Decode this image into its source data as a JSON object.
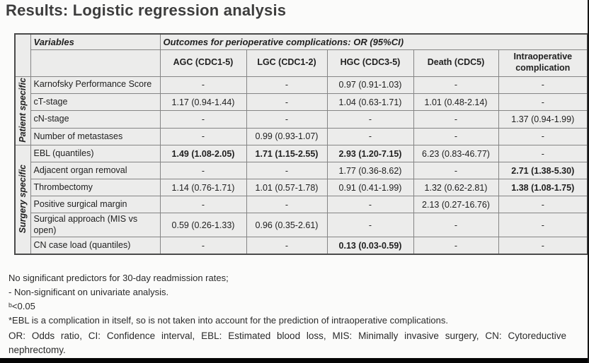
{
  "title": "Results: Logistic regression analysis",
  "table": {
    "variables_header": "Variables",
    "outcomes_header": "Outcomes for perioperative complications: OR (95%CI)",
    "columns": [
      "AGC (CDC1-5)",
      "LGC (CDC1-2)",
      "HGC (CDC3-5)",
      "Death (CDC5)",
      "Intraoperative complication"
    ],
    "groups": [
      {
        "label": "Patient specific",
        "rows": [
          {
            "variable": "Karnofsky Performance Score",
            "values": [
              "-",
              "-",
              "0.97 (0.91-1.03)",
              "-",
              "-"
            ],
            "bold": [
              false,
              false,
              false,
              false,
              false
            ]
          },
          {
            "variable": "cT-stage",
            "values": [
              "1.17 (0.94-1.44)",
              "-",
              "1.04 (0.63-1.71)",
              "1.01 (0.48-2.14)",
              "-"
            ],
            "bold": [
              false,
              false,
              false,
              false,
              false
            ]
          },
          {
            "variable": "cN-stage",
            "values": [
              "-",
              "-",
              "-",
              "-",
              "1.37 (0.94-1.99)"
            ],
            "bold": [
              false,
              false,
              false,
              false,
              false
            ]
          },
          {
            "variable": "Number of metastases",
            "values": [
              "-",
              "0.99 (0.93-1.07)",
              "-",
              "-",
              "-"
            ],
            "bold": [
              false,
              false,
              false,
              false,
              false
            ]
          }
        ]
      },
      {
        "label": "Surgery specific",
        "rows": [
          {
            "variable": "EBL (quantiles)",
            "values": [
              "1.49 (1.08-2.05)",
              "1.71 (1.15-2.55)",
              "2.93 (1.20-7.15)",
              "6.23 (0.83-46.77)",
              "-"
            ],
            "bold": [
              true,
              true,
              true,
              false,
              false
            ]
          },
          {
            "variable": "Adjacent organ removal",
            "values": [
              "-",
              "-",
              "1.77 (0.36-8.62)",
              "-",
              "2.71 (1.38-5.30)"
            ],
            "bold": [
              false,
              false,
              false,
              false,
              true
            ]
          },
          {
            "variable": "Thrombectomy",
            "values": [
              "1.14 (0.76-1.71)",
              "1.01 (0.57-1.78)",
              "0.91 (0.41-1.99)",
              "1.32 (0.62-2.81)",
              "1.38 (1.08-1.75)"
            ],
            "bold": [
              false,
              false,
              false,
              false,
              true
            ]
          },
          {
            "variable": "Positive surgical margin",
            "values": [
              "-",
              "-",
              "-",
              "2.13 (0.27-16.76)",
              "-"
            ],
            "bold": [
              false,
              false,
              false,
              false,
              false
            ]
          },
          {
            "variable": "Surgical approach (MIS vs open)",
            "values": [
              "0.59 (0.26-1.33)",
              "0.96 (0.35-2.61)",
              "-",
              "-",
              "-"
            ],
            "bold": [
              false,
              false,
              false,
              false,
              false
            ]
          },
          {
            "variable": "CN case load (quantiles)",
            "values": [
              "-",
              "-",
              "0.13 (0.03-0.59)",
              "-",
              "-"
            ],
            "bold": [
              false,
              false,
              true,
              false,
              false
            ]
          }
        ]
      }
    ]
  },
  "footnotes": [
    "No significant predictors for 30-day readmission rates;",
    "- Non-significant on univariate analysis.",
    "ᵇ<0.05",
    "*EBL is a complication in itself, so is not taken into account for the prediction of intraoperative complications."
  ],
  "abbreviations": "OR: Odds ratio, CI: Confidence interval, EBL: Estimated blood loss, MIS: Minimally invasive surgery, CN: Cytoreductive nephrectomy.",
  "colors": {
    "title": "#3d3d3d",
    "table_background": "#ececeb",
    "table_border_outer": "#4a4a4a",
    "table_border_inner": "#858585",
    "bottom_bar": "#050505"
  }
}
